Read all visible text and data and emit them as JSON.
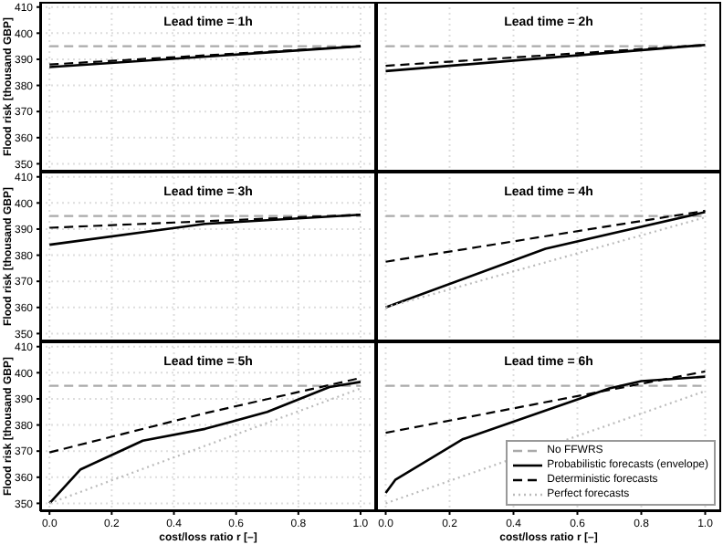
{
  "chart_data": [
    {
      "type": "line",
      "title": "Lead time = 1h",
      "ylabel": "Flood risk [thousand GBP]",
      "xlim": [
        -0.03,
        1.05
      ],
      "ylim": [
        347,
        412
      ],
      "xticks": [
        0,
        0.2,
        0.4,
        0.6,
        0.8,
        1
      ],
      "yticks": [
        350,
        360,
        370,
        380,
        390,
        400,
        410
      ],
      "grid": true,
      "tick_labels": "y",
      "series": [
        {
          "color": "#aaaaaa",
          "line_style": "dashed",
          "x": [
            0,
            1
          ],
          "values": [
            395,
            395
          ]
        },
        {
          "color": "#000000",
          "line_style": "solid",
          "x": [
            0,
            1
          ],
          "values": [
            387,
            395
          ]
        },
        {
          "color": "#000000",
          "line_style": "dashed",
          "x": [
            0,
            1
          ],
          "values": [
            388,
            395
          ]
        }
      ]
    },
    {
      "type": "line",
      "title": "Lead time = 2h",
      "xlim": [
        -0.03,
        1.05
      ],
      "ylim": [
        347,
        412
      ],
      "xticks": [
        0,
        0.2,
        0.4,
        0.6,
        0.8,
        1
      ],
      "yticks": [
        350,
        360,
        370,
        380,
        390,
        400,
        410
      ],
      "grid": true,
      "tick_labels": false,
      "series": [
        {
          "color": "#aaaaaa",
          "line_style": "dashed",
          "x": [
            0,
            1
          ],
          "values": [
            395,
            395
          ]
        },
        {
          "color": "#000000",
          "line_style": "solid",
          "x": [
            0,
            1
          ],
          "values": [
            385.5,
            395.5
          ]
        },
        {
          "color": "#000000",
          "line_style": "dashed",
          "x": [
            0,
            1
          ],
          "values": [
            387.5,
            395.5
          ]
        }
      ]
    },
    {
      "type": "line",
      "title": "Lead time = 3h",
      "ylabel": "Flood risk [thousand GBP]",
      "xlim": [
        -0.03,
        1.05
      ],
      "ylim": [
        347,
        412
      ],
      "xticks": [
        0,
        0.2,
        0.4,
        0.6,
        0.8,
        1
      ],
      "yticks": [
        350,
        360,
        370,
        380,
        390,
        400,
        410
      ],
      "grid": true,
      "tick_labels": "y",
      "series": [
        {
          "color": "#aaaaaa",
          "line_style": "dashed",
          "x": [
            0,
            1
          ],
          "values": [
            395,
            395
          ]
        },
        {
          "color": "#000000",
          "line_style": "solid",
          "x": [
            0,
            0.5,
            1
          ],
          "values": [
            384,
            392,
            395.5
          ]
        },
        {
          "color": "#000000",
          "line_style": "dashed",
          "x": [
            0,
            1
          ],
          "values": [
            390.5,
            395.5
          ]
        }
      ]
    },
    {
      "type": "line",
      "title": "Lead time = 4h",
      "xlim": [
        -0.03,
        1.05
      ],
      "ylim": [
        347,
        412
      ],
      "xticks": [
        0,
        0.2,
        0.4,
        0.6,
        0.8,
        1
      ],
      "yticks": [
        350,
        360,
        370,
        380,
        390,
        400,
        410
      ],
      "grid": true,
      "tick_labels": false,
      "series": [
        {
          "color": "#aaaaaa",
          "line_style": "dashed",
          "x": [
            0,
            1
          ],
          "values": [
            395,
            395
          ]
        },
        {
          "color": "#000000",
          "line_style": "solid",
          "x": [
            0,
            0.5,
            1
          ],
          "values": [
            360,
            382.5,
            396.5
          ]
        },
        {
          "color": "#000000",
          "line_style": "dashed",
          "x": [
            0,
            1
          ],
          "values": [
            377.5,
            397
          ]
        },
        {
          "color": "#bbbbbb",
          "line_style": "dotted",
          "x": [
            0,
            1
          ],
          "values": [
            360,
            394.5
          ]
        }
      ]
    },
    {
      "type": "line",
      "title": "Lead time = 5h",
      "xlabel": "cost/loss ratio r [–]",
      "ylabel": "Flood risk [thousand GBP]",
      "xlim": [
        -0.03,
        1.05
      ],
      "ylim": [
        347,
        412
      ],
      "xticks": [
        {
          "value": 0,
          "label": "0.0"
        },
        {
          "value": 0.2,
          "label": "0.2"
        },
        {
          "value": 0.4,
          "label": "0.4"
        },
        {
          "value": 0.6,
          "label": "0.6"
        },
        {
          "value": 0.8,
          "label": "0.8"
        },
        {
          "value": 1,
          "label": "1.0"
        }
      ],
      "yticks": [
        350,
        360,
        370,
        380,
        390,
        400,
        410
      ],
      "grid": true,
      "series": [
        {
          "color": "#aaaaaa",
          "line_style": "dashed",
          "x": [
            0,
            1
          ],
          "values": [
            395,
            395
          ]
        },
        {
          "color": "#000000",
          "line_style": "solid",
          "x": [
            0,
            0.1,
            0.2,
            0.3,
            0.5,
            0.7,
            0.9,
            1
          ],
          "values": [
            350,
            363,
            368.5,
            374,
            378.5,
            385,
            394.5,
            396.5
          ]
        },
        {
          "color": "#000000",
          "line_style": "dashed",
          "x": [
            0,
            0.5,
            1
          ],
          "values": [
            369.5,
            384.5,
            398
          ]
        },
        {
          "color": "#bbbbbb",
          "line_style": "dotted",
          "x": [
            0,
            1
          ],
          "values": [
            350,
            394
          ]
        }
      ]
    },
    {
      "type": "line",
      "title": "Lead time = 6h",
      "xlabel": "cost/loss ratio r [–]",
      "xlim": [
        -0.03,
        1.05
      ],
      "ylim": [
        347,
        412
      ],
      "xticks": [
        {
          "value": 0,
          "label": "0.0"
        },
        {
          "value": 0.2,
          "label": "0.2"
        },
        {
          "value": 0.4,
          "label": "0.4"
        },
        {
          "value": 0.6,
          "label": "0.6"
        },
        {
          "value": 0.8,
          "label": "0.8"
        },
        {
          "value": 1,
          "label": "1.0"
        }
      ],
      "yticks": [
        350,
        360,
        370,
        380,
        390,
        400,
        410
      ],
      "grid": true,
      "tick_labels": "x",
      "legend": "bottom right",
      "series": [
        {
          "name": "No FFWRS",
          "color": "#aaaaaa",
          "line_style": "dashed",
          "x": [
            0,
            1
          ],
          "values": [
            395,
            395
          ]
        },
        {
          "name": "Probabilistic forecasts (envelope)",
          "color": "#000000",
          "line_style": "solid",
          "x": [
            0,
            0.03,
            0.24,
            0.5,
            0.7,
            0.8,
            1
          ],
          "values": [
            354,
            359,
            374.5,
            385.5,
            394,
            396.8,
            398.5
          ]
        },
        {
          "name": "Deterministic forecasts",
          "color": "#000000",
          "line_style": "dashed",
          "x": [
            0,
            0.7,
            1
          ],
          "values": [
            377,
            393.4,
            400.5
          ]
        },
        {
          "name": "Perfect forecasts",
          "color": "#bbbbbb",
          "line_style": "dotted",
          "x": [
            0,
            1
          ],
          "values": [
            350,
            393
          ]
        }
      ]
    }
  ]
}
